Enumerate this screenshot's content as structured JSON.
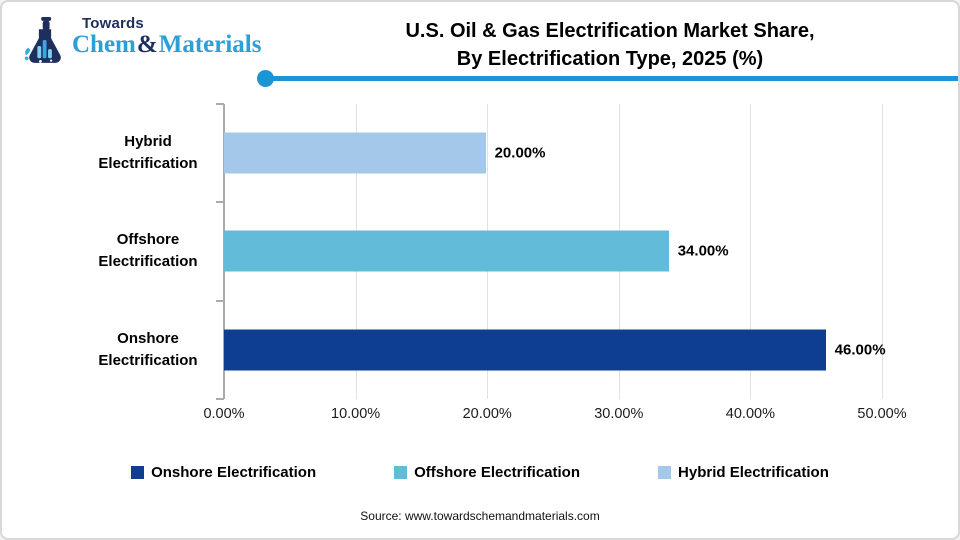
{
  "logo": {
    "towards": "Towards",
    "chem": "Chem",
    "amp": "&",
    "materials": "Materials"
  },
  "header": {
    "title_line1": "U.S. Oil & Gas Electrification Market Share,",
    "title_line2": "By Electrification Type, 2025 (%)"
  },
  "chart_data": {
    "type": "bar",
    "orientation": "horizontal",
    "title": "U.S. Oil & Gas Electrification Market Share, By Electrification Type, 2025 (%)",
    "categories": [
      "Hybrid Electrification",
      "Offshore Electrification",
      "Onshore Electrification"
    ],
    "values": [
      20,
      34,
      46
    ],
    "value_labels": [
      "20.00%",
      "34.00%",
      "46.00%"
    ],
    "colors": [
      "#a4c8e9",
      "#62bbd9",
      "#0e3e90"
    ],
    "x_ticks": [
      "0.00%",
      "10.00%",
      "20.00%",
      "30.00%",
      "40.00%",
      "50.00%"
    ],
    "xlim": [
      0,
      50
    ],
    "grid": true,
    "legend_position": "bottom"
  },
  "legend": {
    "items": [
      {
        "label": "Onshore Electrification",
        "color": "#0e3e90"
      },
      {
        "label": "Offshore Electrification",
        "color": "#62bbd9"
      },
      {
        "label": "Hybrid Electrification",
        "color": "#a4c8e9"
      }
    ]
  },
  "footer": {
    "source": "Source: www.towardschemandmaterials.com"
  }
}
